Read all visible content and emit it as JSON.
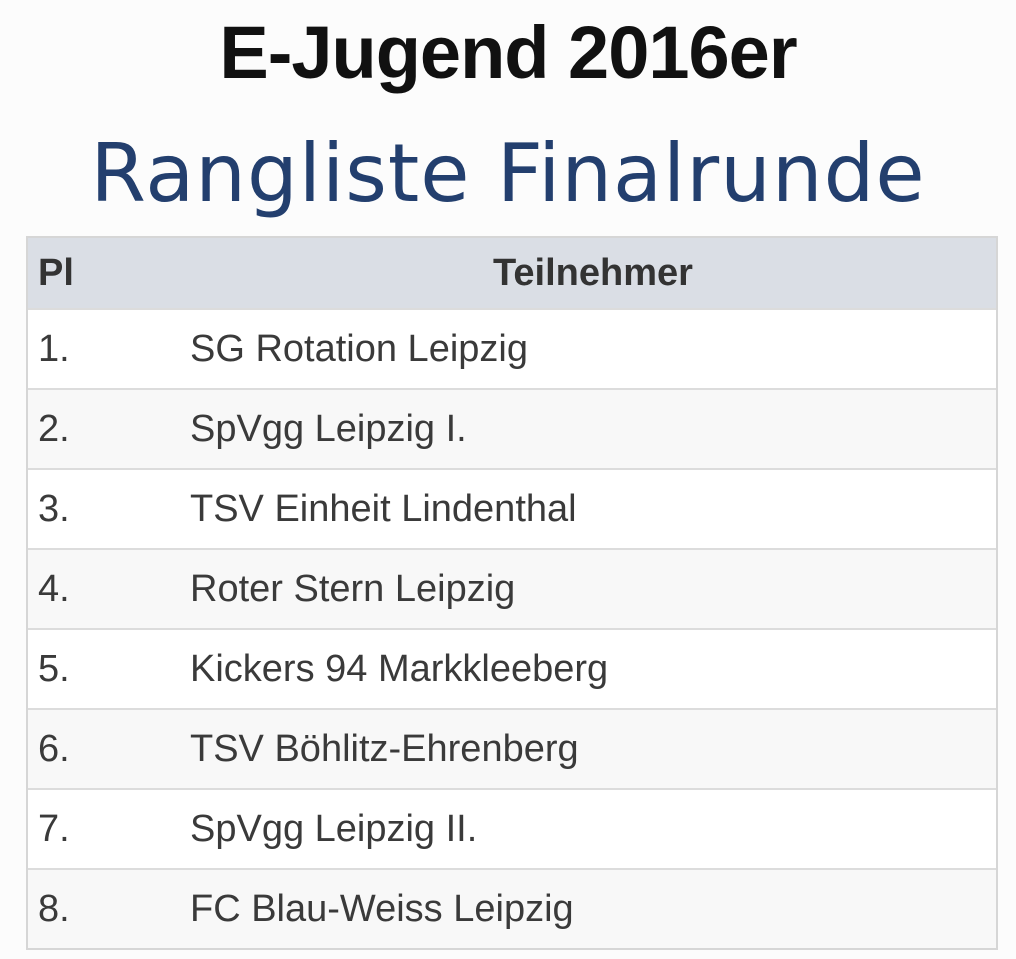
{
  "header": {
    "title": "E-Jugend 2016er",
    "subtitle": "Rangliste Finalrunde"
  },
  "table": {
    "columns": [
      "Pl",
      "Teilnehmer"
    ],
    "rows": [
      {
        "place": "1.",
        "team": "SG Rotation Leipzig"
      },
      {
        "place": "2.",
        "team": "SpVgg Leipzig I."
      },
      {
        "place": "3.",
        "team": "TSV Einheit Lindenthal"
      },
      {
        "place": "4.",
        "team": "Roter Stern Leipzig"
      },
      {
        "place": "5.",
        "team": "Kickers 94 Markkleeberg"
      },
      {
        "place": "6.",
        "team": "TSV Böhlitz-Ehrenberg"
      },
      {
        "place": "7.",
        "team": "SpVgg Leipzig II."
      },
      {
        "place": "8.",
        "team": "FC Blau-Weiss Leipzig"
      }
    ]
  },
  "colors": {
    "title": "#111111",
    "subtitle": "#233f6e",
    "header_bg": "#dadee5",
    "row_alt_bg": "#f8f8f8",
    "text": "#3a3a3a"
  }
}
